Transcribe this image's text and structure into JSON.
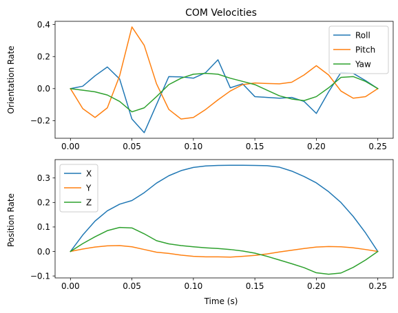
{
  "chart_data": [
    {
      "type": "line",
      "title": "COM Velocities",
      "xlabel": "",
      "ylabel": "Orientation Rate",
      "xlim": [
        -0.0125,
        0.2625
      ],
      "ylim": [
        -0.31,
        0.42
      ],
      "xticks": [
        "0.00",
        "0.05",
        "0.10",
        "0.15",
        "0.20",
        "0.25"
      ],
      "xtick_values": [
        0,
        0.05,
        0.1,
        0.15,
        0.2,
        0.25
      ],
      "yticks": [
        "−0.2",
        "0.0",
        "0.2",
        "0.4"
      ],
      "ytick_values": [
        -0.2,
        0,
        0.2,
        0.4
      ],
      "grid": false,
      "legend": "top-right",
      "x": [
        0,
        0.01,
        0.02,
        0.03,
        0.04,
        0.05,
        0.06,
        0.07,
        0.08,
        0.09,
        0.1,
        0.11,
        0.12,
        0.13,
        0.14,
        0.15,
        0.16,
        0.17,
        0.18,
        0.19,
        0.2,
        0.21,
        0.22,
        0.23,
        0.24,
        0.25
      ],
      "series": [
        {
          "name": "Roll",
          "color": "#1f77b4",
          "values": [
            0,
            0.015,
            0.08,
            0.135,
            0.06,
            -0.19,
            -0.275,
            -0.1,
            0.075,
            0.073,
            0.065,
            0.1,
            0.18,
            0.005,
            0.03,
            -0.05,
            -0.055,
            -0.06,
            -0.055,
            -0.08,
            -0.155,
            -0.02,
            0.1,
            0.095,
            0.05,
            0.0
          ]
        },
        {
          "name": "Pitch",
          "color": "#ff7f0e",
          "values": [
            0,
            -0.125,
            -0.18,
            -0.12,
            0.08,
            0.385,
            0.27,
            0.03,
            -0.13,
            -0.19,
            -0.18,
            -0.13,
            -0.07,
            -0.015,
            0.025,
            0.035,
            0.032,
            0.03,
            0.04,
            0.085,
            0.143,
            0.085,
            -0.015,
            -0.06,
            -0.05,
            0.0
          ]
        },
        {
          "name": "Yaw",
          "color": "#2ca02c",
          "values": [
            0,
            -0.01,
            -0.02,
            -0.04,
            -0.08,
            -0.145,
            -0.12,
            -0.05,
            0.025,
            0.065,
            0.09,
            0.095,
            0.09,
            0.065,
            0.045,
            0.025,
            -0.01,
            -0.045,
            -0.065,
            -0.075,
            -0.05,
            0.005,
            0.07,
            0.075,
            0.045,
            0.0
          ]
        }
      ]
    },
    {
      "type": "line",
      "title": "",
      "xlabel": "Time (s)",
      "ylabel": "Position Rate",
      "xlim": [
        -0.0125,
        0.2625
      ],
      "ylim": [
        -0.108,
        0.375
      ],
      "xticks": [
        "0.00",
        "0.05",
        "0.10",
        "0.15",
        "0.20",
        "0.25"
      ],
      "xtick_values": [
        0,
        0.05,
        0.1,
        0.15,
        0.2,
        0.25
      ],
      "yticks": [
        "−0.1",
        "0.0",
        "0.1",
        "0.2",
        "0.3"
      ],
      "ytick_values": [
        -0.1,
        0,
        0.1,
        0.2,
        0.3
      ],
      "grid": false,
      "legend": "top-left",
      "x": [
        0,
        0.01,
        0.02,
        0.03,
        0.04,
        0.05,
        0.06,
        0.07,
        0.08,
        0.09,
        0.1,
        0.11,
        0.12,
        0.13,
        0.14,
        0.15,
        0.16,
        0.17,
        0.18,
        0.19,
        0.2,
        0.21,
        0.22,
        0.23,
        0.24,
        0.25
      ],
      "series": [
        {
          "name": "X",
          "color": "#1f77b4",
          "values": [
            0,
            0.067,
            0.124,
            0.166,
            0.193,
            0.208,
            0.24,
            0.279,
            0.309,
            0.33,
            0.343,
            0.349,
            0.351,
            0.352,
            0.352,
            0.351,
            0.35,
            0.344,
            0.328,
            0.306,
            0.28,
            0.244,
            0.2,
            0.143,
            0.076,
            0.0
          ]
        },
        {
          "name": "Y",
          "color": "#ff7f0e",
          "values": [
            0,
            0.01,
            0.018,
            0.023,
            0.024,
            0.019,
            0.008,
            -0.003,
            -0.008,
            -0.015,
            -0.02,
            -0.022,
            -0.022,
            -0.023,
            -0.02,
            -0.016,
            -0.01,
            -0.002,
            0.005,
            0.012,
            0.018,
            0.02,
            0.019,
            0.015,
            0.008,
            0.0
          ]
        },
        {
          "name": "Z",
          "color": "#2ca02c",
          "values": [
            0,
            0.032,
            0.06,
            0.085,
            0.098,
            0.096,
            0.072,
            0.044,
            0.031,
            0.024,
            0.019,
            0.015,
            0.012,
            0.008,
            0.002,
            -0.007,
            -0.02,
            -0.035,
            -0.05,
            -0.066,
            -0.087,
            -0.093,
            -0.088,
            -0.065,
            -0.035,
            0.0
          ]
        }
      ]
    }
  ]
}
